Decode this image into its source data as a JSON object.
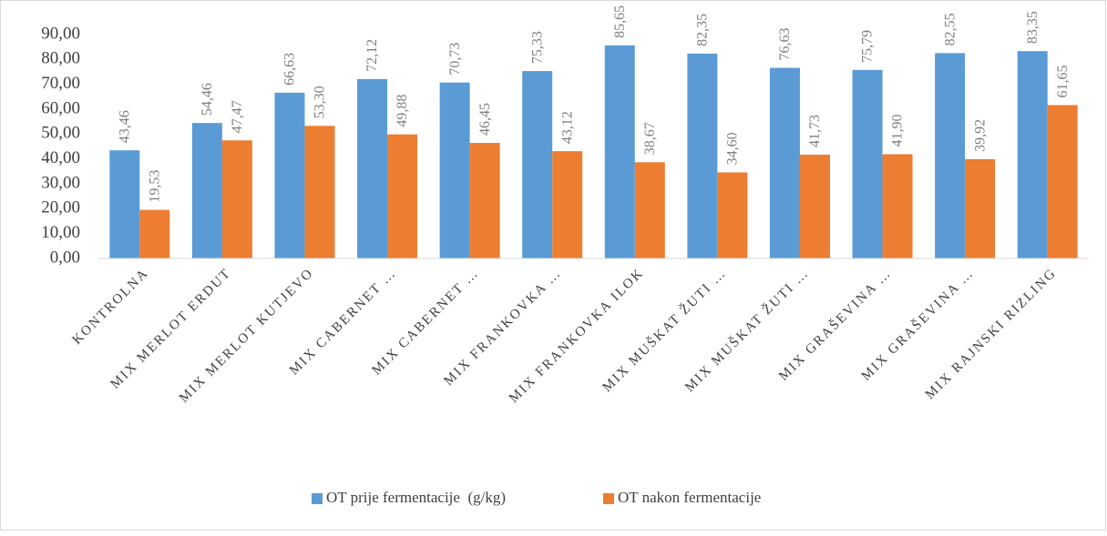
{
  "chart_data": {
    "type": "bar",
    "categories": [
      "KONTROLNA",
      "MIX MERLOT ERDUT",
      "MIX MERLOT KUTJEVO",
      "MIX CABERNET …",
      "MIX CABERNET …",
      "MIX FRANKOVKA …",
      "MIX FRANKOVKA ILOK",
      "MIX MUŠKAT ŽUTI …",
      "MIX MUŠKAT ŽUTI …",
      "MIX GRAŠEVINA …",
      "MIX GRAŠEVINA …",
      "MIX RAJNSKI RIZLING"
    ],
    "series": [
      {
        "name": "OT prije fermentacije  (g/kg)",
        "color": "#5b9bd5",
        "values": [
          43.46,
          54.46,
          66.63,
          72.12,
          70.73,
          75.33,
          85.65,
          82.35,
          76.63,
          75.79,
          82.55,
          83.35
        ],
        "value_labels": [
          "43,46",
          "54,46",
          "66,63",
          "72,12",
          "70,73",
          "75,33",
          "85,65",
          "82,35",
          "76,63",
          "75,79",
          "82,55",
          "83,35"
        ]
      },
      {
        "name": "OT nakon fermentacije",
        "color": "#ed7d31",
        "values": [
          19.53,
          47.47,
          53.3,
          49.88,
          46.45,
          43.12,
          38.67,
          34.6,
          41.73,
          41.9,
          39.92,
          61.65
        ],
        "value_labels": [
          "19,53",
          "47,47",
          "53,30",
          "49,88",
          "46,45",
          "43,12",
          "38,67",
          "34,60",
          "41,73",
          "41,90",
          "39,92",
          "61,65"
        ]
      }
    ],
    "ylim": [
      0,
      90
    ],
    "yticks": [
      {
        "value": 0,
        "label": "0,00"
      },
      {
        "value": 10,
        "label": "10,00"
      },
      {
        "value": 20,
        "label": "20,00"
      },
      {
        "value": 30,
        "label": "30,00"
      },
      {
        "value": 40,
        "label": "40,00"
      },
      {
        "value": 50,
        "label": "50,00"
      },
      {
        "value": 60,
        "label": "60,00"
      },
      {
        "value": 70,
        "label": "70,00"
      },
      {
        "value": 80,
        "label": "80,00"
      },
      {
        "value": 90,
        "label": "90,00"
      }
    ],
    "grid": false,
    "legend": "bottom"
  }
}
